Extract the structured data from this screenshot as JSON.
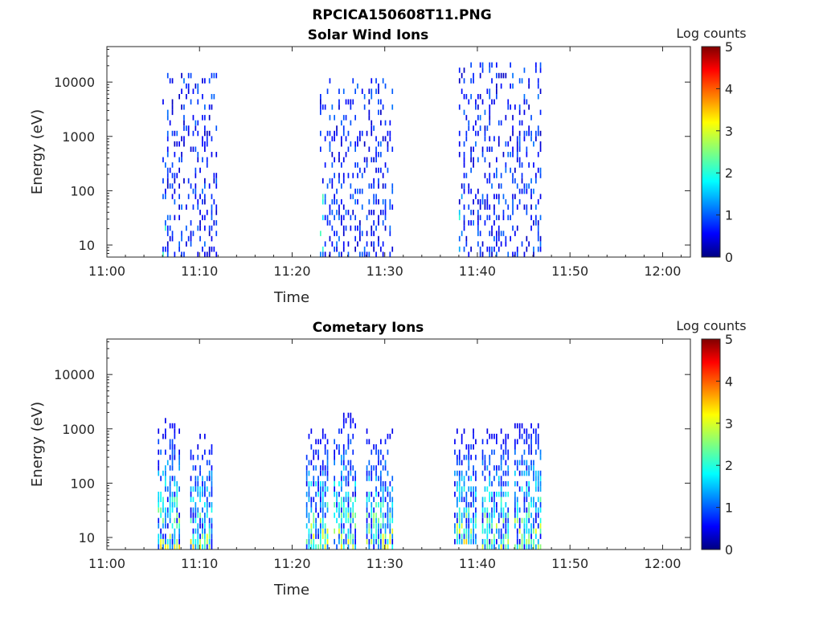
{
  "figure_title": "RPCICA150608T11.PNG",
  "chart_data": [
    {
      "type": "heatmap",
      "title": "Solar Wind Ions",
      "xlabel": "Time",
      "ylabel": "Energy (eV)",
      "y_scale": "log",
      "xlim": [
        "11:00",
        "12:03"
      ],
      "ylim": [
        6,
        45000
      ],
      "x_ticks": [
        "11:00",
        "11:10",
        "11:20",
        "11:30",
        "11:40",
        "11:50",
        "12:00"
      ],
      "y_ticks": [
        "10",
        "100",
        "1000",
        "10000"
      ],
      "colorbar": {
        "label": "Log counts",
        "range": [
          0,
          5
        ],
        "ticks": [
          "0",
          "1",
          "2",
          "3",
          "4",
          "5"
        ],
        "colormap": "jet"
      },
      "bursts": [
        {
          "start": "11:06",
          "end": "11:12",
          "emin": 6,
          "emax": 16000,
          "peak_log_counts": 2.0
        },
        {
          "start": "11:23",
          "end": "11:31",
          "emin": 6,
          "emax": 12000,
          "peak_log_counts": 2.0
        },
        {
          "start": "11:38",
          "end": "11:47",
          "emin": 6,
          "emax": 23000,
          "peak_log_counts": 2.0
        }
      ]
    },
    {
      "type": "heatmap",
      "title": "Cometary Ions",
      "xlabel": "Time",
      "ylabel": "Energy (eV)",
      "y_scale": "log",
      "xlim": [
        "11:00",
        "12:03"
      ],
      "ylim": [
        6,
        45000
      ],
      "x_ticks": [
        "11:00",
        "11:10",
        "11:20",
        "11:30",
        "11:40",
        "11:50",
        "12:00"
      ],
      "y_ticks": [
        "10",
        "100",
        "1000",
        "10000"
      ],
      "colorbar": {
        "label": "Log counts",
        "range": [
          0,
          5
        ],
        "ticks": [
          "0",
          "1",
          "2",
          "3",
          "4",
          "5"
        ],
        "colormap": "jet"
      },
      "bursts": [
        {
          "start": "11:05.5",
          "end": "11:08",
          "emin": 6,
          "emax": 1500,
          "peak_log_counts": 3.0
        },
        {
          "start": "11:09",
          "end": "11:11.5",
          "emin": 6,
          "emax": 800,
          "peak_log_counts": 3.0
        },
        {
          "start": "11:21.5",
          "end": "11:24",
          "emin": 6,
          "emax": 1000,
          "peak_log_counts": 3.0
        },
        {
          "start": "11:24.5",
          "end": "11:27",
          "emin": 6,
          "emax": 2000,
          "peak_log_counts": 3.0
        },
        {
          "start": "11:28",
          "end": "11:31",
          "emin": 6,
          "emax": 1000,
          "peak_log_counts": 3.0
        },
        {
          "start": "11:37.5",
          "end": "11:40",
          "emin": 8,
          "emax": 1000,
          "peak_log_counts": 3.0
        },
        {
          "start": "11:40.5",
          "end": "11:43.5",
          "emin": 6,
          "emax": 1000,
          "peak_log_counts": 3.0
        },
        {
          "start": "11:44",
          "end": "11:47",
          "emin": 6,
          "emax": 1600,
          "peak_log_counts": 3.0
        }
      ]
    }
  ]
}
